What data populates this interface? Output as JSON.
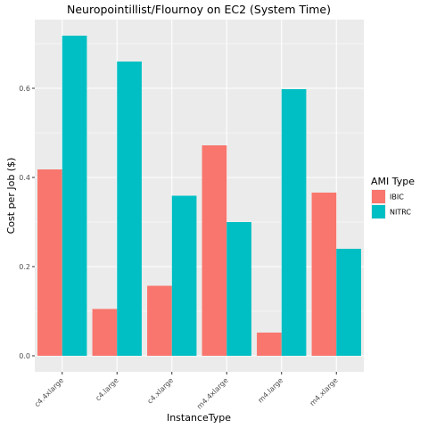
{
  "chart_data": {
    "type": "bar",
    "title": "Neuropointillist/Flournoy on EC2 (System Time)",
    "xlabel": "InstanceType",
    "ylabel": "Cost per Job ($)",
    "categories": [
      "c4.4xlarge",
      "c4.large",
      "c4.xlarge",
      "m4.4xlarge",
      "m4.large",
      "m4.xlarge"
    ],
    "series": [
      {
        "name": "IBIC",
        "color": "#F8766D",
        "values": [
          0.418,
          0.105,
          0.157,
          0.472,
          0.052,
          0.366
        ]
      },
      {
        "name": "NITRC",
        "color": "#00BFC4",
        "values": [
          0.718,
          0.66,
          0.359,
          0.3,
          0.598,
          0.24
        ]
      }
    ],
    "ylim": [
      -0.036,
      0.754
    ],
    "yticks": [
      0.0,
      0.2,
      0.4,
      0.6
    ],
    "ytick_labels": [
      "0.0",
      "0.2",
      "0.4",
      "0.6"
    ],
    "grid": true,
    "legend": {
      "title": "AMI Type",
      "position": "right"
    },
    "panel_color": "#EBEBEB"
  }
}
